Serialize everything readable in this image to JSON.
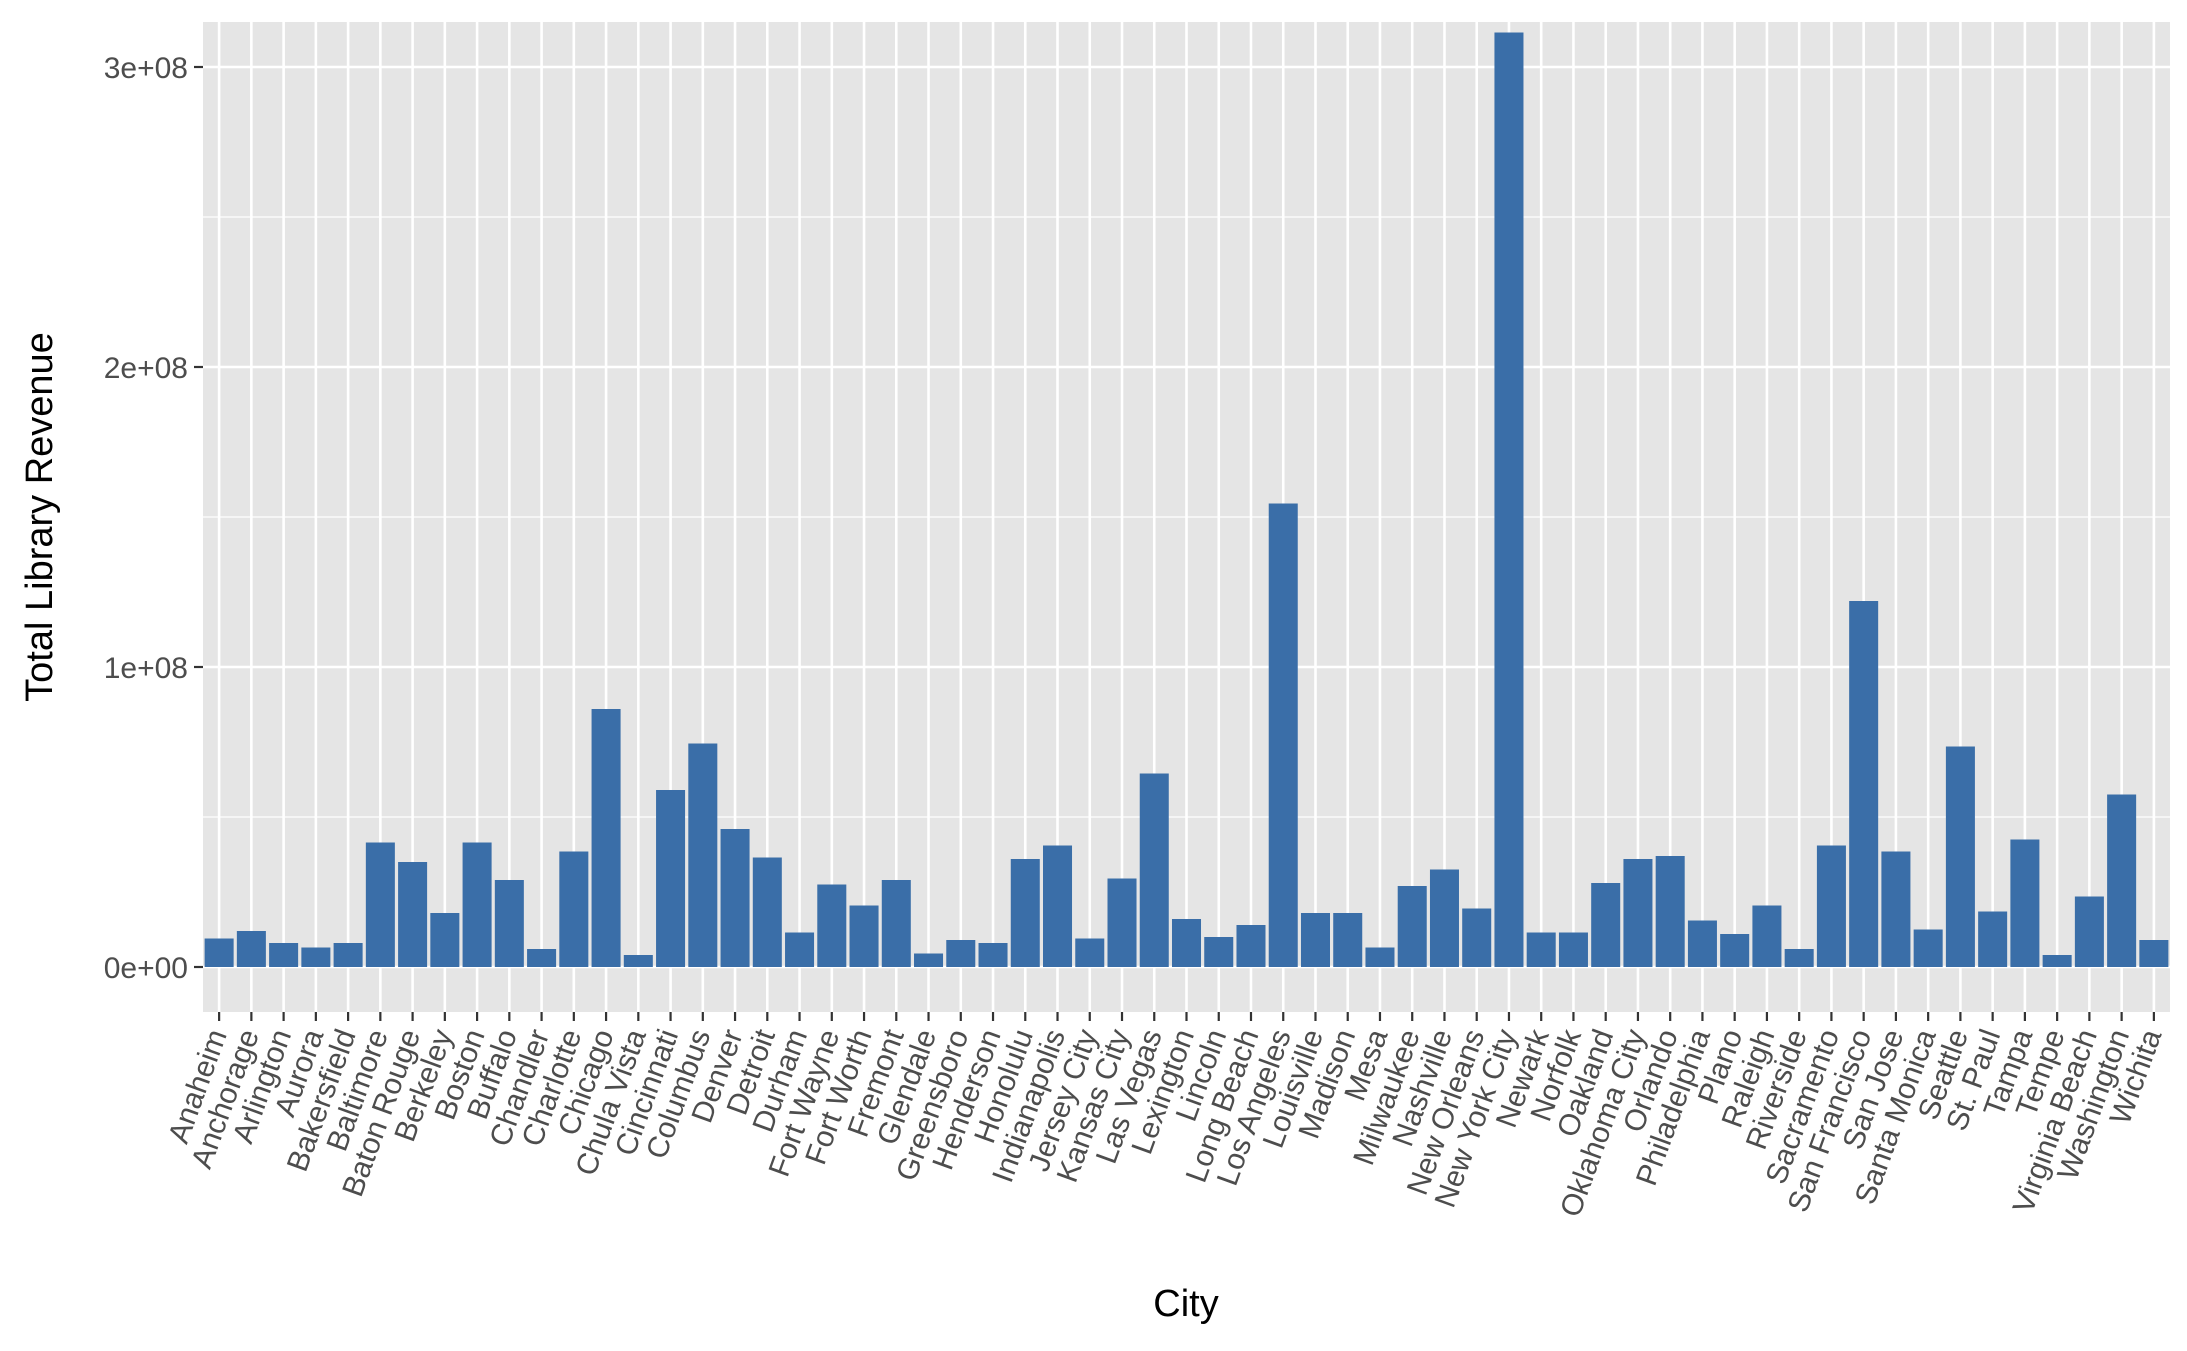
{
  "chart_data": {
    "type": "bar",
    "xlabel": "City",
    "ylabel": "Total Library Revenue",
    "ylim": [
      -15000000,
      315000000
    ],
    "yticks": [
      {
        "value": 0,
        "label": "0e+00"
      },
      {
        "value": 100000000,
        "label": "1e+08"
      },
      {
        "value": 200000000,
        "label": "2e+08"
      },
      {
        "value": 300000000,
        "label": "3e+08"
      }
    ],
    "grid": true,
    "legend": "none",
    "colors": {
      "bar": "#3a6ea8",
      "panel": "#e5e5e5",
      "grid": "#ffffff",
      "tick": "#333333"
    },
    "categories": [
      "Anaheim",
      "Anchorage",
      "Arlington",
      "Aurora",
      "Bakersfield",
      "Baltimore",
      "Baton Rouge",
      "Berkeley",
      "Boston",
      "Buffalo",
      "Chandler",
      "Charlotte",
      "Chicago",
      "Chula Vista",
      "Cincinnati",
      "Columbus",
      "Denver",
      "Detroit",
      "Durham",
      "Fort Wayne",
      "Fort Worth",
      "Fremont",
      "Glendale",
      "Greensboro",
      "Henderson",
      "Honolulu",
      "Indianapolis",
      "Jersey City",
      "Kansas City",
      "Las Vegas",
      "Lexington",
      "Lincoln",
      "Long Beach",
      "Los Angeles",
      "Louisville",
      "Madison",
      "Mesa",
      "Milwaukee",
      "Nashville",
      "New Orleans",
      "New York City",
      "Newark",
      "Norfolk",
      "Oakland",
      "Oklahoma City",
      "Orlando",
      "Philadelphia",
      "Plano",
      "Raleigh",
      "Riverside",
      "Sacramento",
      "San Francisco",
      "San Jose",
      "Santa Monica",
      "Seattle",
      "St. Paul",
      "Tampa",
      "Tempe",
      "Virginia Beach",
      "Washington",
      "Wichita"
    ],
    "values": [
      9500000,
      12000000,
      8000000,
      6500000,
      8000000,
      41500000,
      35000000,
      18000000,
      41500000,
      29000000,
      6000000,
      38500000,
      86000000,
      4000000,
      59000000,
      74500000,
      46000000,
      36500000,
      11500000,
      27500000,
      20500000,
      29000000,
      4500000,
      9000000,
      8000000,
      36000000,
      40500000,
      9500000,
      29500000,
      64500000,
      16000000,
      10000000,
      14000000,
      154500000,
      18000000,
      18000000,
      6500000,
      27000000,
      32500000,
      19500000,
      311500000,
      11500000,
      11500000,
      28000000,
      36000000,
      37000000,
      15500000,
      11000000,
      20500000,
      6000000,
      40500000,
      122000000,
      38500000,
      12500000,
      73500000,
      18500000,
      42500000,
      4000000,
      23500000,
      57500000,
      9000000
    ]
  }
}
